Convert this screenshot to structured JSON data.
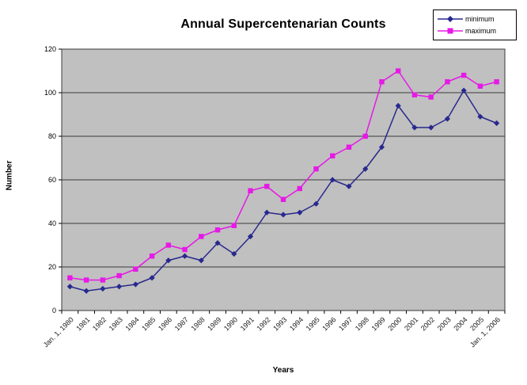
{
  "title": "Annual Supercentenarian Counts",
  "legend": {
    "position": "top-right",
    "items": [
      {
        "label": "minimum",
        "marker": "diamond"
      },
      {
        "label": "maximum",
        "marker": "square"
      }
    ]
  },
  "chart_data": {
    "type": "line",
    "title": "Annual Supercentenarian Counts",
    "xlabel": "Years",
    "ylabel": "Number",
    "ylim": [
      0,
      120
    ],
    "yticks": [
      0,
      20,
      40,
      60,
      80,
      100,
      120
    ],
    "grid": true,
    "plot_bg": "#c0c0c0",
    "grid_color": "#3a3a3a",
    "legend_position": "top-right",
    "categories": [
      "Jan. 1, 1980",
      "1981",
      "1982",
      "1983",
      "1984",
      "1985",
      "1986",
      "1987",
      "1988",
      "1989",
      "1990",
      "1991",
      "1992",
      "1993",
      "1994",
      "1995",
      "1996",
      "1997",
      "1998",
      "1999",
      "2000",
      "2001",
      "2002",
      "2003",
      "2004",
      "2005",
      "Jan. 1, 2006"
    ],
    "series": [
      {
        "name": "minimum",
        "color": "#28288e",
        "marker": "diamond",
        "values": [
          11,
          9,
          10,
          11,
          12,
          15,
          23,
          25,
          23,
          31,
          26,
          34,
          45,
          44,
          45,
          49,
          60,
          57,
          65,
          75,
          94,
          84,
          84,
          88,
          101,
          89,
          86
        ]
      },
      {
        "name": "maximum",
        "color": "#e619e6",
        "marker": "square",
        "values": [
          15,
          14,
          14,
          16,
          19,
          25,
          30,
          28,
          34,
          37,
          39,
          55,
          57,
          51,
          56,
          65,
          71,
          75,
          80,
          105,
          110,
          99,
          98,
          105,
          108,
          103,
          105
        ]
      }
    ]
  }
}
